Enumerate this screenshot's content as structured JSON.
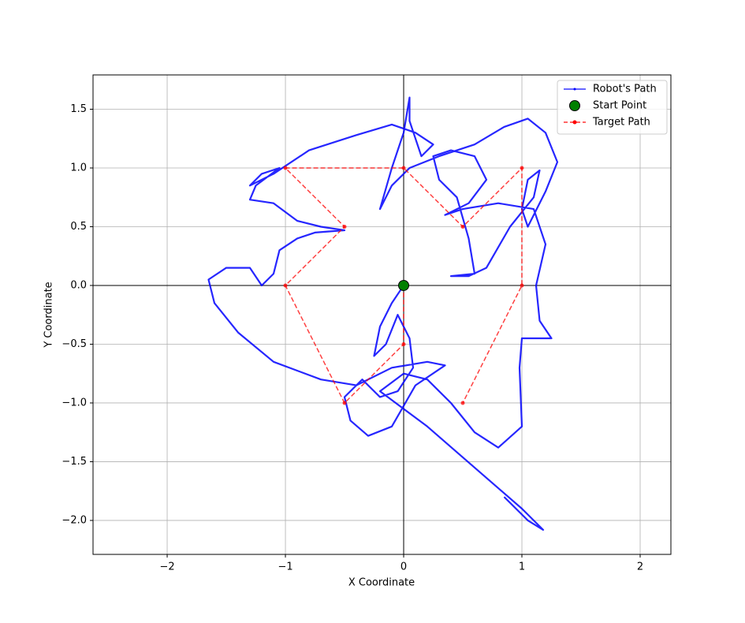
{
  "chart_data": {
    "type": "line",
    "x_label": "X Coordinate",
    "y_label": "Y Coordinate",
    "xlim": [
      -2.627,
      2.26
    ],
    "ylim": [
      -2.289,
      1.792
    ],
    "xticks": [
      {
        "value": -2,
        "label": "−2"
      },
      {
        "value": -1,
        "label": "−1"
      },
      0,
      1,
      2
    ],
    "yticks": [
      {
        "value": -2,
        "label": "−2.0"
      },
      {
        "value": -1.5,
        "label": "−1.5"
      },
      {
        "value": -1,
        "label": "−1.0"
      },
      {
        "value": -0.5,
        "label": "−0.5"
      },
      {
        "value": 0,
        "label": "0.0"
      },
      0.5,
      {
        "value": 1,
        "label": "1.0"
      },
      1.5
    ],
    "grid": true,
    "zero_lines": true,
    "legend": "upper right",
    "series": [
      {
        "name": "Robot's Path",
        "color": "#0000ff",
        "style": "solid",
        "x": [
          0,
          -0.1,
          -0.2,
          -0.25,
          -0.15,
          -0.05,
          0.05,
          0.08,
          -0.05,
          -0.2,
          -0.35,
          -0.5,
          -0.45,
          -0.3,
          -0.1,
          0.1,
          0.35,
          0.2,
          -0.1,
          -0.4,
          -0.7,
          -1.1,
          -1.4,
          -1.6,
          -1.65,
          -1.5,
          -1.3,
          -1.2,
          -1.1,
          -1.05,
          -0.9,
          -0.75,
          -0.5,
          -0.7,
          -0.9,
          -1.1,
          -1.3,
          -1.25,
          -1.05,
          -1.2,
          -1.3,
          -1.1,
          -0.8,
          -0.4,
          -0.1,
          0.1,
          0.25,
          0.15,
          0.05,
          0.05,
          0,
          -0.1,
          -0.2,
          -0.1,
          0.05,
          0.3,
          0.6,
          0.85,
          1.05,
          1.2,
          1.3,
          1.2,
          1.1,
          1.05,
          1.0,
          1.05,
          1.15,
          1.1,
          0.9,
          0.7,
          0.55,
          0.4,
          0.6,
          0.55,
          0.45,
          0.3,
          0.25,
          0.4,
          0.6,
          0.7,
          0.55,
          0.35,
          0.5,
          0.8,
          1.1,
          1.2,
          1.12,
          1.15,
          1.25,
          1.0,
          0.98,
          1.0,
          0.8,
          0.6,
          0.4,
          0.2,
          0,
          -0.2,
          0.2,
          0.6,
          1.0,
          1.18,
          1.05,
          0.85
        ],
        "values": [
          0,
          -0.15,
          -0.35,
          -0.6,
          -0.5,
          -0.25,
          -0.45,
          -0.7,
          -0.9,
          -0.95,
          -0.8,
          -0.95,
          -1.15,
          -1.28,
          -1.2,
          -0.85,
          -0.68,
          -0.65,
          -0.7,
          -0.85,
          -0.8,
          -0.65,
          -0.4,
          -0.15,
          0.05,
          0.15,
          0.15,
          0,
          0.1,
          0.3,
          0.4,
          0.45,
          0.47,
          0.5,
          0.55,
          0.7,
          0.73,
          0.85,
          1.0,
          0.95,
          0.85,
          0.95,
          1.15,
          1.28,
          1.37,
          1.3,
          1.2,
          1.1,
          1.4,
          1.6,
          1.3,
          1.0,
          0.65,
          0.85,
          1.0,
          1.1,
          1.2,
          1.35,
          1.42,
          1.3,
          1.05,
          0.8,
          0.6,
          0.5,
          0.65,
          0.9,
          0.98,
          0.75,
          0.5,
          0.15,
          0.08,
          0.08,
          0.1,
          0.4,
          0.75,
          0.9,
          1.1,
          1.15,
          1.1,
          0.9,
          0.7,
          0.6,
          0.65,
          0.7,
          0.65,
          0.35,
          0,
          -0.3,
          -0.45,
          -0.45,
          -0.7,
          -1.2,
          -1.38,
          -1.25,
          -1.0,
          -0.8,
          -0.75,
          -0.9,
          -1.2,
          -1.55,
          -1.9,
          -2.08,
          -2.0,
          -1.8
        ]
      },
      {
        "name": "Start Point",
        "color": "#008000",
        "style": "marker",
        "x": [
          0
        ],
        "values": [
          0
        ]
      },
      {
        "name": "Target Path",
        "color": "#ff0000",
        "style": "dashed",
        "x": [
          0,
          0,
          -0.5,
          -1,
          -0.5,
          -1,
          0,
          0.5,
          1,
          1,
          0.5
        ],
        "values": [
          0,
          -0.5,
          -1,
          0,
          0.5,
          1,
          1,
          0.5,
          1,
          0,
          -1
        ]
      }
    ]
  }
}
